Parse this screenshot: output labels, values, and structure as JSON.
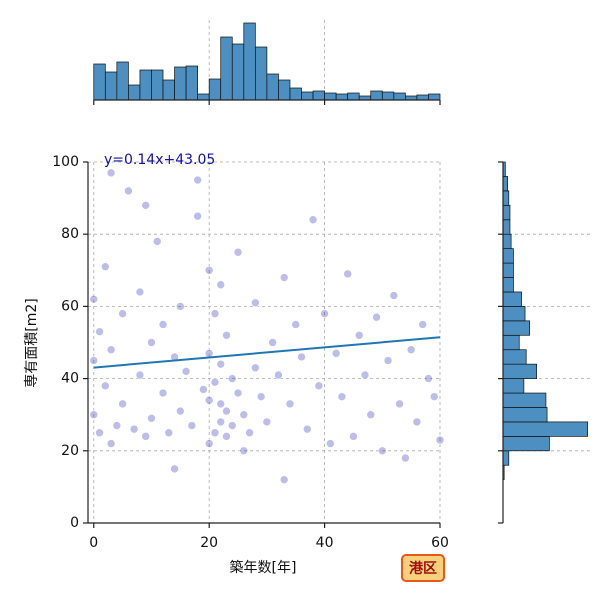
{
  "chart_data": {
    "type": "scatter",
    "xlabel": "築年数[年]",
    "ylabel": "専有面積[m2]",
    "annotation": "港区",
    "xlim": [
      -1,
      60
    ],
    "ylim": [
      0,
      100
    ],
    "xticks": [
      0,
      20,
      40,
      60
    ],
    "yticks": [
      0,
      20,
      40,
      60,
      80,
      100
    ],
    "grid": true,
    "color": "#2626b8",
    "x": [
      0,
      0,
      0,
      1,
      1,
      2,
      2,
      3,
      3,
      4,
      5,
      5,
      6,
      7,
      8,
      8,
      9,
      10,
      10,
      11,
      12,
      12,
      13,
      14,
      15,
      15,
      16,
      17,
      18,
      19,
      20,
      20,
      20,
      20,
      21,
      21,
      21,
      22,
      22,
      22,
      22,
      23,
      23,
      23,
      24,
      24,
      25,
      25,
      26,
      27,
      28,
      28,
      29,
      30,
      31,
      32,
      33,
      34,
      35,
      36,
      37,
      38,
      39,
      40,
      41,
      42,
      43,
      44,
      45,
      46,
      47,
      48,
      49,
      50,
      51,
      52,
      53,
      54,
      55,
      56,
      57,
      58,
      59,
      60,
      3,
      9,
      14,
      18,
      26,
      33
    ],
    "y": [
      30,
      45,
      62,
      25,
      53,
      38,
      71,
      22,
      48,
      27,
      58,
      33,
      92,
      26,
      41,
      64,
      24,
      50,
      29,
      78,
      36,
      55,
      25,
      46,
      31,
      60,
      42,
      27,
      85,
      37,
      22,
      34,
      47,
      70,
      25,
      39,
      58,
      28,
      33,
      44,
      66,
      24,
      31,
      52,
      27,
      40,
      36,
      75,
      30,
      25,
      43,
      61,
      35,
      28,
      50,
      41,
      68,
      33,
      55,
      46,
      26,
      84,
      38,
      58,
      22,
      47,
      35,
      69,
      24,
      52,
      41,
      30,
      57,
      20,
      45,
      63,
      33,
      18,
      48,
      28,
      55,
      40,
      35,
      23,
      97,
      88,
      15,
      95,
      20,
      12
    ],
    "regression": {
      "label": "y=0.14x+43.05",
      "slope": 0.14,
      "intercept": 43.05,
      "color": "#1f77b4"
    },
    "top_histogram": {
      "type": "histogram",
      "color": "#4c8fc0",
      "ylim": [
        0,
        80
      ],
      "bins": [
        0,
        2,
        4,
        6,
        8,
        10,
        12,
        14,
        16,
        18,
        20,
        22,
        24,
        26,
        28,
        30,
        32,
        34,
        36,
        38,
        40,
        42,
        44,
        46,
        48,
        50,
        52,
        54,
        56,
        58,
        60
      ],
      "counts": [
        36,
        28,
        38,
        15,
        30,
        30,
        20,
        33,
        34,
        6,
        21,
        63,
        56,
        77,
        53,
        26,
        20,
        12,
        8,
        9,
        7,
        6,
        7,
        4,
        9,
        8,
        7,
        4,
        5,
        6
      ]
    },
    "right_histogram": {
      "type": "histogram",
      "color": "#4c8fc0",
      "xlim": [
        0,
        75
      ],
      "bins": [
        12,
        16,
        20,
        24,
        28,
        32,
        36,
        40,
        44,
        48,
        52,
        56,
        60,
        64,
        68,
        72,
        76,
        80,
        84,
        88,
        92,
        96,
        100
      ],
      "counts": [
        1,
        5,
        40,
        73,
        38,
        37,
        18,
        29,
        20,
        14,
        23,
        19,
        16,
        9,
        9,
        9,
        7,
        6,
        6,
        5,
        4,
        2
      ]
    }
  }
}
